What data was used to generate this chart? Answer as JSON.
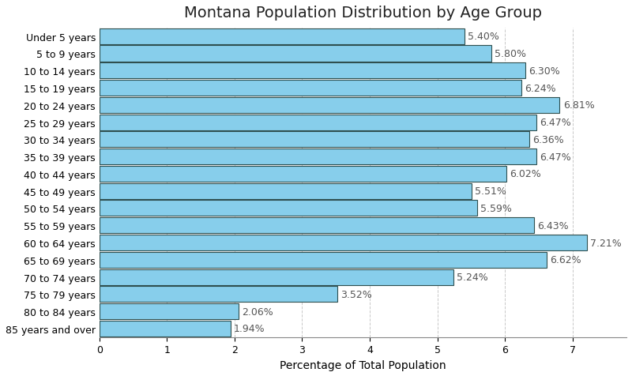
{
  "title": "Montana Population Distribution by Age Group",
  "xlabel": "Percentage of Total Population",
  "categories": [
    "Under 5 years",
    "5 to 9 years",
    "10 to 14 years",
    "15 to 19 years",
    "20 to 24 years",
    "25 to 29 years",
    "30 to 34 years",
    "35 to 39 years",
    "40 to 44 years",
    "45 to 49 years",
    "50 to 54 years",
    "55 to 59 years",
    "60 to 64 years",
    "65 to 69 years",
    "70 to 74 years",
    "75 to 79 years",
    "80 to 84 years",
    "85 years and over"
  ],
  "values": [
    5.4,
    5.8,
    6.3,
    6.24,
    6.81,
    6.47,
    6.36,
    6.47,
    6.02,
    5.51,
    5.59,
    6.43,
    7.21,
    6.62,
    5.24,
    3.52,
    2.06,
    1.94
  ],
  "bar_color": "#87CEEB",
  "bar_edge_color": "#2F4F4F",
  "background_color": "#ffffff",
  "grid_color": "#c8c8c8",
  "title_fontsize": 14,
  "label_fontsize": 10,
  "tick_fontsize": 9,
  "annotation_fontsize": 9,
  "xlim": [
    0,
    7.8
  ]
}
